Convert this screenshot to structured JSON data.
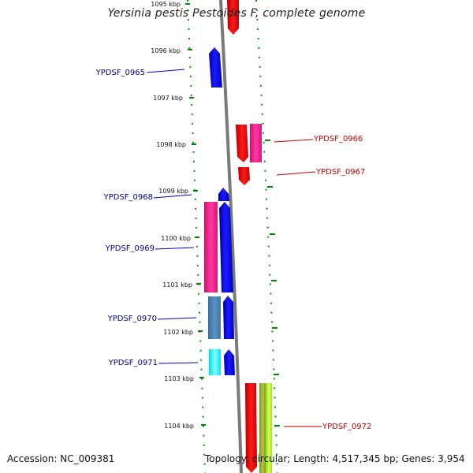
{
  "title": "Yersinia pestis Pestoides F, complete genome",
  "footer": {
    "accession": "Accession: NC_009381",
    "topology": "Topology: circular; Length: 4,517,345 bp; Genes: 3,954"
  },
  "ticks": [
    "1095 kbp",
    "1096 kbp",
    "1097 kbp",
    "1098 kbp",
    "1099 kbp",
    "1100 kbp",
    "1101 kbp",
    "1102 kbp",
    "1103 kbp",
    "1104 kbp"
  ],
  "genes": [
    {
      "id": "YPDSF_0965",
      "color": "#0000ee",
      "labelColor": "#00008b"
    },
    {
      "id": "YPDSF_0966",
      "color": "#ee0000",
      "labelColor": "#cc0000"
    },
    {
      "id": "YPDSF_0967",
      "color": "#ee0000",
      "labelColor": "#cc0000"
    },
    {
      "id": "YPDSF_0968",
      "color": "#0000ee",
      "labelColor": "#00008b"
    },
    {
      "id": "YPDSF_0969",
      "color": "#0000ee",
      "labelColor": "#00008b"
    },
    {
      "id": "YPDSF_0970",
      "color": "#0000ee",
      "labelColor": "#00008b"
    },
    {
      "id": "YPDSF_0971",
      "color": "#0000ee",
      "labelColor": "#00008b"
    },
    {
      "id": "YPDSF_0972",
      "color": "#ee0000",
      "labelColor": "#cc0000"
    }
  ],
  "colors": {
    "forward_gene": "#0000ee",
    "reverse_gene": "#ee0000",
    "pink_feature": "#ff1493",
    "steel_feature": "#4682b4",
    "cyan_feature": "#00ffff",
    "olive_feature": "#9aaa33",
    "lime_feature": "#aaff00",
    "backbone": "#777777",
    "tick": "#007700"
  }
}
